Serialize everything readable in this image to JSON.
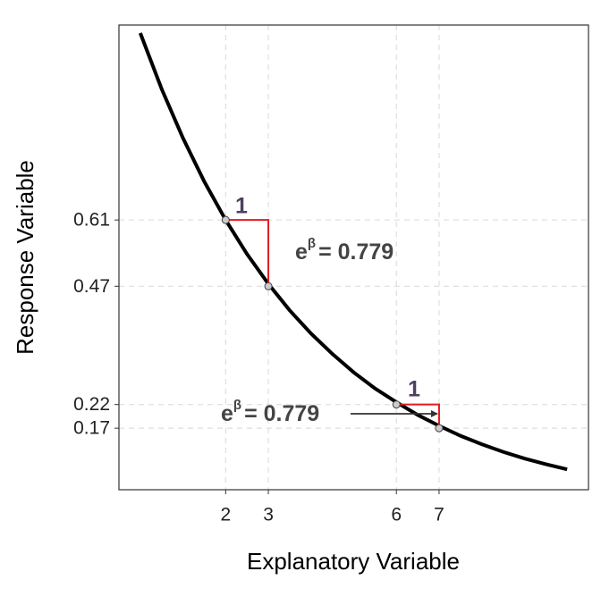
{
  "chart_data": {
    "type": "line",
    "x_label": "Explanatory Variable",
    "y_label": "Response Variable",
    "x": [
      0,
      0.5,
      1,
      1.5,
      2,
      2.5,
      3,
      3.5,
      4,
      4.5,
      5,
      5.5,
      6,
      6.5,
      7,
      7.5,
      8,
      8.5,
      9,
      9.5,
      10
    ],
    "values": [
      1.005,
      0.887,
      0.783,
      0.691,
      0.61,
      0.538,
      0.475,
      0.419,
      0.37,
      0.327,
      0.288,
      0.254,
      0.225,
      0.198,
      0.175,
      0.154,
      0.136,
      0.12,
      0.106,
      0.094,
      0.083
    ],
    "color": "#000000",
    "points": {
      "x": [
        2,
        3,
        6,
        7
      ],
      "values": [
        0.61,
        0.47,
        0.22,
        0.17
      ]
    },
    "xlim": [
      -0.5,
      10.5
    ],
    "xticks": [
      2,
      3,
      6,
      7
    ],
    "ylim": [
      0.04,
      1.022
    ],
    "yticks": [
      0.17,
      0.22,
      0.47,
      0.61
    ],
    "grid": true,
    "annotations": [
      {
        "run": "1",
        "base": "e",
        "sup": "β",
        "text": "= 0.779"
      },
      {
        "run": "1",
        "base": "e",
        "sup": "β",
        "text": "= 0.779"
      }
    ]
  }
}
